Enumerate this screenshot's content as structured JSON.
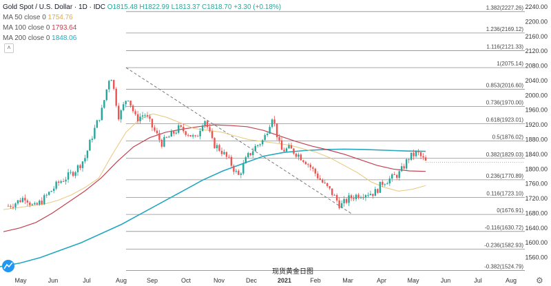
{
  "legend": {
    "symbol_title": "Gold Spot / U.S. Dollar · 1D · IDC",
    "ohlc": "O1815.48 H1822.99 L1813.37 C1818.70 +3.30 (+0.18%)",
    "ma50_label": "MA 50 close 0",
    "ma50_value": "1754.76",
    "ma100_label": "MA 100 close 0",
    "ma100_value": "1793.64",
    "ma200_label": "MA 200 close 0",
    "ma200_value": "1848.06",
    "toggle_glyph": "˄"
  },
  "caption": "现货黄金日图",
  "colors": {
    "up": "#26a69a",
    "down": "#ef5350",
    "ma50": "#e8c67b",
    "ma100": "#c2404e",
    "ma200": "#22a7bf",
    "fib": "#8c8c8c",
    "price_label_bg": "#3a3f4b"
  },
  "chart_data": {
    "type": "candlestick",
    "y_scale": {
      "min": 1520,
      "max": 2240,
      "step": 40
    },
    "x_labels": [
      "May",
      "Jun",
      "Jul",
      "Aug",
      "Sep",
      "Oct",
      "Nov",
      "Dec",
      "2021",
      "Feb",
      "Mar",
      "Apr",
      "May",
      "Jun",
      "Jul",
      "Aug"
    ],
    "fib_levels": [
      {
        "ratio": "1.382",
        "price": 2227.26
      },
      {
        "ratio": "1.236",
        "price": 2169.12
      },
      {
        "ratio": "1.116",
        "price": 2121.33
      },
      {
        "ratio": "1",
        "price": 2075.14
      },
      {
        "ratio": "0.853",
        "price": 2016.6
      },
      {
        "ratio": "0.736",
        "price": 1970.0
      },
      {
        "ratio": "0.618",
        "price": 1923.01
      },
      {
        "ratio": "0.5",
        "price": 1876.02
      },
      {
        "ratio": "0.382",
        "price": 1829.03
      },
      {
        "ratio": "0.236",
        "price": 1770.89
      },
      {
        "ratio": "0.116",
        "price": 1723.1
      },
      {
        "ratio": "0",
        "price": 1676.91
      },
      {
        "ratio": "-0.116",
        "price": 1630.72
      },
      {
        "ratio": "-0.236",
        "price": 1582.93
      },
      {
        "ratio": "-0.382",
        "price": 1524.79
      }
    ],
    "last_price": 1818.7,
    "trend_line": {
      "from_price": 2075.14,
      "to_price": 1676.91
    },
    "price_path": [
      [
        "May",
        1700
      ],
      [
        "",
        1710
      ],
      [
        "",
        1725
      ],
      [
        "Jun",
        1695
      ],
      [
        "",
        1715
      ],
      [
        "",
        1740
      ],
      [
        "",
        1765
      ],
      [
        "Jul",
        1780
      ],
      [
        "",
        1800
      ],
      [
        "",
        1830
      ],
      [
        "",
        1900
      ],
      [
        "",
        1960
      ],
      [
        "Aug",
        2063
      ],
      [
        "",
        1940
      ],
      [
        "",
        2000
      ],
      [
        "",
        1935
      ],
      [
        "Sep",
        1950
      ],
      [
        "",
        1910
      ],
      [
        "",
        1870
      ],
      [
        "Oct",
        1890
      ],
      [
        "",
        1910
      ],
      [
        "",
        1900
      ],
      [
        "",
        1880
      ],
      [
        "Nov",
        1940
      ],
      [
        "",
        1870
      ],
      [
        "",
        1850
      ],
      [
        "",
        1820
      ],
      [
        "Dec",
        1780
      ],
      [
        "",
        1830
      ],
      [
        "",
        1860
      ],
      [
        "",
        1880
      ],
      [
        "2021",
        1945
      ],
      [
        "",
        1850
      ],
      [
        "",
        1855
      ],
      [
        "",
        1840
      ],
      [
        "Feb",
        1820
      ],
      [
        "",
        1790
      ],
      [
        "",
        1760
      ],
      [
        "",
        1735
      ],
      [
        "Mar",
        1700
      ],
      [
        "",
        1720
      ],
      [
        "",
        1730
      ],
      [
        "",
        1735
      ],
      [
        "Apr",
        1735
      ],
      [
        "",
        1765
      ],
      [
        "",
        1775
      ],
      [
        "",
        1790
      ],
      [
        "May",
        1830
      ],
      [
        "",
        1845
      ],
      [
        "",
        1818.7
      ]
    ],
    "ma50_path": [
      1690,
      1695,
      1700,
      1705,
      1715,
      1730,
      1750,
      1775,
      1840,
      1900,
      1935,
      1950,
      1940,
      1925,
      1910,
      1905,
      1900,
      1890,
      1880,
      1875,
      1870,
      1865,
      1855,
      1845,
      1830,
      1810,
      1790,
      1765,
      1750,
      1740,
      1745,
      1755
    ],
    "ma100_path": [
      1630,
      1640,
      1655,
      1680,
      1710,
      1740,
      1775,
      1820,
      1860,
      1885,
      1900,
      1908,
      1915,
      1920,
      1918,
      1915,
      1905,
      1890,
      1875,
      1862,
      1852,
      1840,
      1825,
      1810,
      1800,
      1795,
      1793.64
    ],
    "ma200_path": [
      1535,
      1545,
      1560,
      1580,
      1600,
      1625,
      1650,
      1680,
      1710,
      1740,
      1770,
      1795,
      1815,
      1835,
      1845,
      1850,
      1853,
      1854,
      1853,
      1851,
      1849,
      1848.06
    ]
  }
}
